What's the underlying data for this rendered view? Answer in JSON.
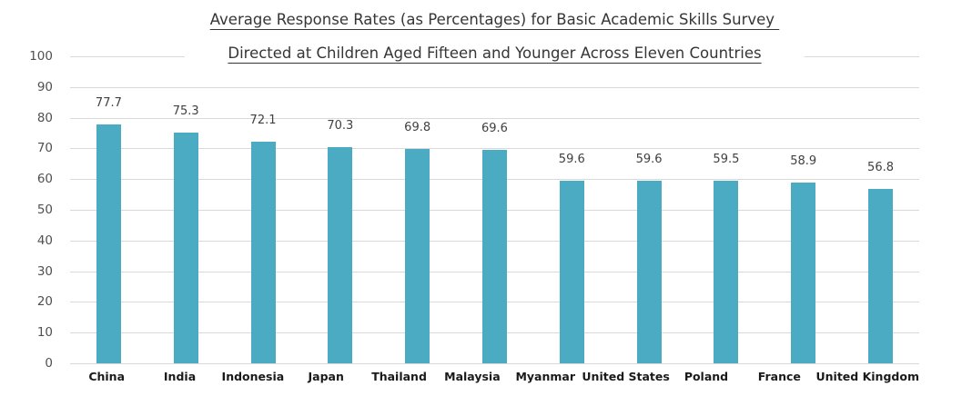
{
  "title": {
    "line1": "Average Response Rates (as Percentages) for Basic Academic Skills Survey ",
    "line2": "Directed at Children Aged Fifteen and Younger Across Eleven Countries"
  },
  "colors": {
    "bar": "#4aabc3",
    "gridline": "#d9d9d9",
    "background": "#ffffff",
    "title_text": "#363636",
    "tick_text": "#505050",
    "value_label_text": "#404040",
    "category_label_text": "#1a1a1a"
  },
  "chart_data": {
    "type": "bar",
    "title": "Average Response Rates (as Percentages) for Basic Academic Skills Survey Directed at Children Aged Fifteen and Younger Across Eleven Countries",
    "categories": [
      "China",
      "India",
      "Indonesia",
      "Japan",
      "Thailand",
      "Malaysia",
      "Myanmar",
      "United States",
      "Poland",
      "France",
      "United Kingdom"
    ],
    "values": [
      77.7,
      75.3,
      72.1,
      70.3,
      69.8,
      69.6,
      59.6,
      59.6,
      59.5,
      58.9,
      56.8
    ],
    "value_labels": [
      "77.7",
      "75.3",
      "72.1",
      "70.3",
      "69.8",
      "69.6",
      "59.6",
      "59.6",
      "59.5",
      "58.9",
      "56.8"
    ],
    "xlabel": "",
    "ylabel": "",
    "ylim": [
      0,
      100
    ],
    "yticks": [
      0,
      10,
      20,
      30,
      40,
      50,
      60,
      70,
      80,
      90,
      100
    ],
    "grid": true,
    "legend": false,
    "bar_color": "#4aabc3"
  }
}
